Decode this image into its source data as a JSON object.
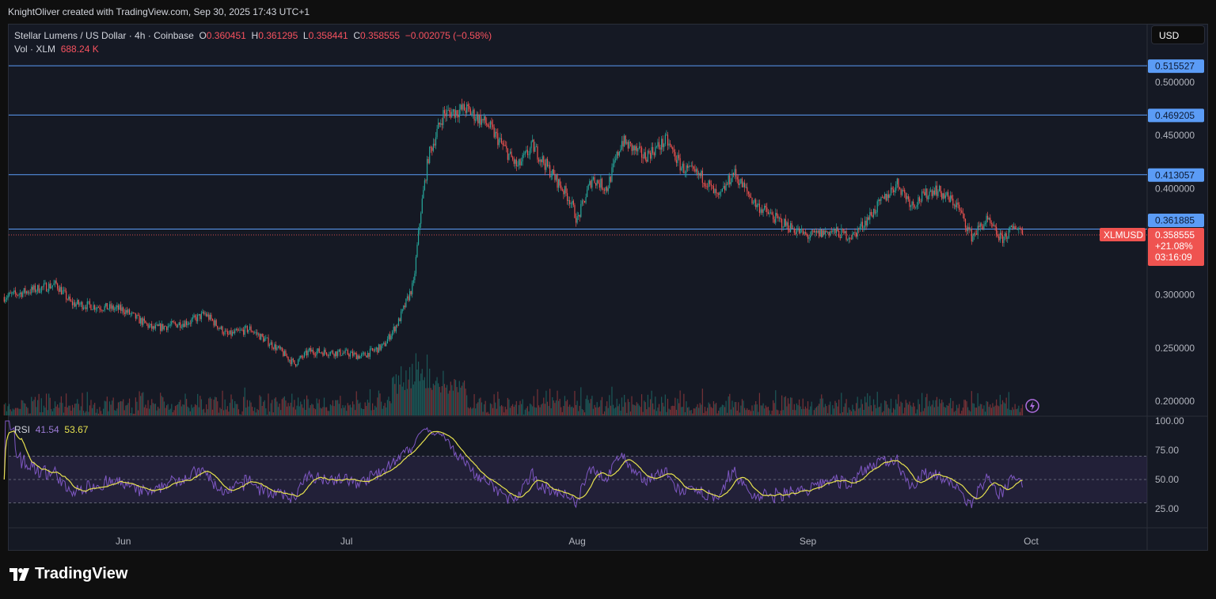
{
  "credit": "KnightOliver created with TradingView.com, Sep 30, 2025 17:43 UTC+1",
  "legend": {
    "symbol": "Stellar Lumens / US Dollar · 4h · Coinbase",
    "o_label": "O",
    "o": "0.360451",
    "h_label": "H",
    "h": "0.361295",
    "l_label": "L",
    "l": "0.358441",
    "c_label": "C",
    "c": "0.358555",
    "change": "−0.002075 (−0.58%)",
    "vol_label": "Vol · XLM",
    "vol": "688.24 K"
  },
  "rsi_legend": {
    "label": "RSI",
    "rsi": "41.54",
    "ma": "53.67"
  },
  "currency": "USD",
  "brand": "TradingView",
  "price_tag": {
    "symbol": "XLMUSD",
    "price": "0.358555",
    "change": "+21.08%",
    "countdown": "03:16:09"
  },
  "colors": {
    "up": "#26a69a",
    "down": "#ef5350",
    "hline": "#5b9cf6",
    "rsi": "#7e57c2",
    "rsi_ma": "#e6e14f"
  },
  "chart_data": {
    "type": "candlestick",
    "interval": "4h",
    "price_axis": {
      "ticks": [
        "0.500000",
        "0.450000",
        "0.400000",
        "0.300000",
        "0.250000",
        "0.200000"
      ],
      "tick_values": [
        0.5,
        0.45,
        0.4,
        0.3,
        0.25,
        0.2
      ]
    },
    "horizontal_lines": [
      {
        "label": "0.515527",
        "value": 0.515527
      },
      {
        "label": "0.469205",
        "value": 0.469205
      },
      {
        "label": "0.413057",
        "value": 0.413057
      },
      {
        "label": "0.361885",
        "value": 0.361885
      }
    ],
    "x_ticks": [
      {
        "label": "Jun",
        "day": 16
      },
      {
        "label": "Jul",
        "day": 46
      },
      {
        "label": "Aug",
        "day": 77
      },
      {
        "label": "Sep",
        "day": 108
      },
      {
        "label": "Oct",
        "day": 138
      }
    ],
    "close_anchors_by_day": [
      [
        0,
        0.298
      ],
      [
        7,
        0.31
      ],
      [
        9,
        0.292
      ],
      [
        16,
        0.286
      ],
      [
        20,
        0.268
      ],
      [
        25,
        0.275
      ],
      [
        27,
        0.282
      ],
      [
        30,
        0.262
      ],
      [
        33,
        0.268
      ],
      [
        37,
        0.248
      ],
      [
        39,
        0.235
      ],
      [
        41,
        0.247
      ],
      [
        46,
        0.245
      ],
      [
        48,
        0.242
      ],
      [
        51,
        0.252
      ],
      [
        53,
        0.275
      ],
      [
        55,
        0.31
      ],
      [
        56,
        0.38
      ],
      [
        57,
        0.43
      ],
      [
        59,
        0.47
      ],
      [
        62,
        0.475
      ],
      [
        65,
        0.46
      ],
      [
        67,
        0.44
      ],
      [
        69,
        0.42
      ],
      [
        71,
        0.44
      ],
      [
        74,
        0.41
      ],
      [
        76,
        0.39
      ],
      [
        77,
        0.37
      ],
      [
        79,
        0.41
      ],
      [
        81,
        0.4
      ],
      [
        83,
        0.445
      ],
      [
        86,
        0.43
      ],
      [
        89,
        0.445
      ],
      [
        91,
        0.42
      ],
      [
        94,
        0.41
      ],
      [
        96,
        0.39
      ],
      [
        98,
        0.415
      ],
      [
        101,
        0.385
      ],
      [
        104,
        0.37
      ],
      [
        108,
        0.355
      ],
      [
        111,
        0.36
      ],
      [
        114,
        0.355
      ],
      [
        117,
        0.38
      ],
      [
        120,
        0.405
      ],
      [
        122,
        0.385
      ],
      [
        125,
        0.4
      ],
      [
        128,
        0.385
      ],
      [
        130,
        0.355
      ],
      [
        132,
        0.37
      ],
      [
        134,
        0.352
      ],
      [
        136,
        0.365
      ],
      [
        137,
        0.3586
      ]
    ],
    "rsi_axis": {
      "ticks": [
        "100.00",
        "75.00",
        "50.00",
        "25.00"
      ],
      "tick_values": [
        100,
        75,
        50,
        25
      ],
      "bands": [
        30,
        70
      ]
    },
    "rsi_period": 14,
    "rsi_ma_period": 14
  }
}
